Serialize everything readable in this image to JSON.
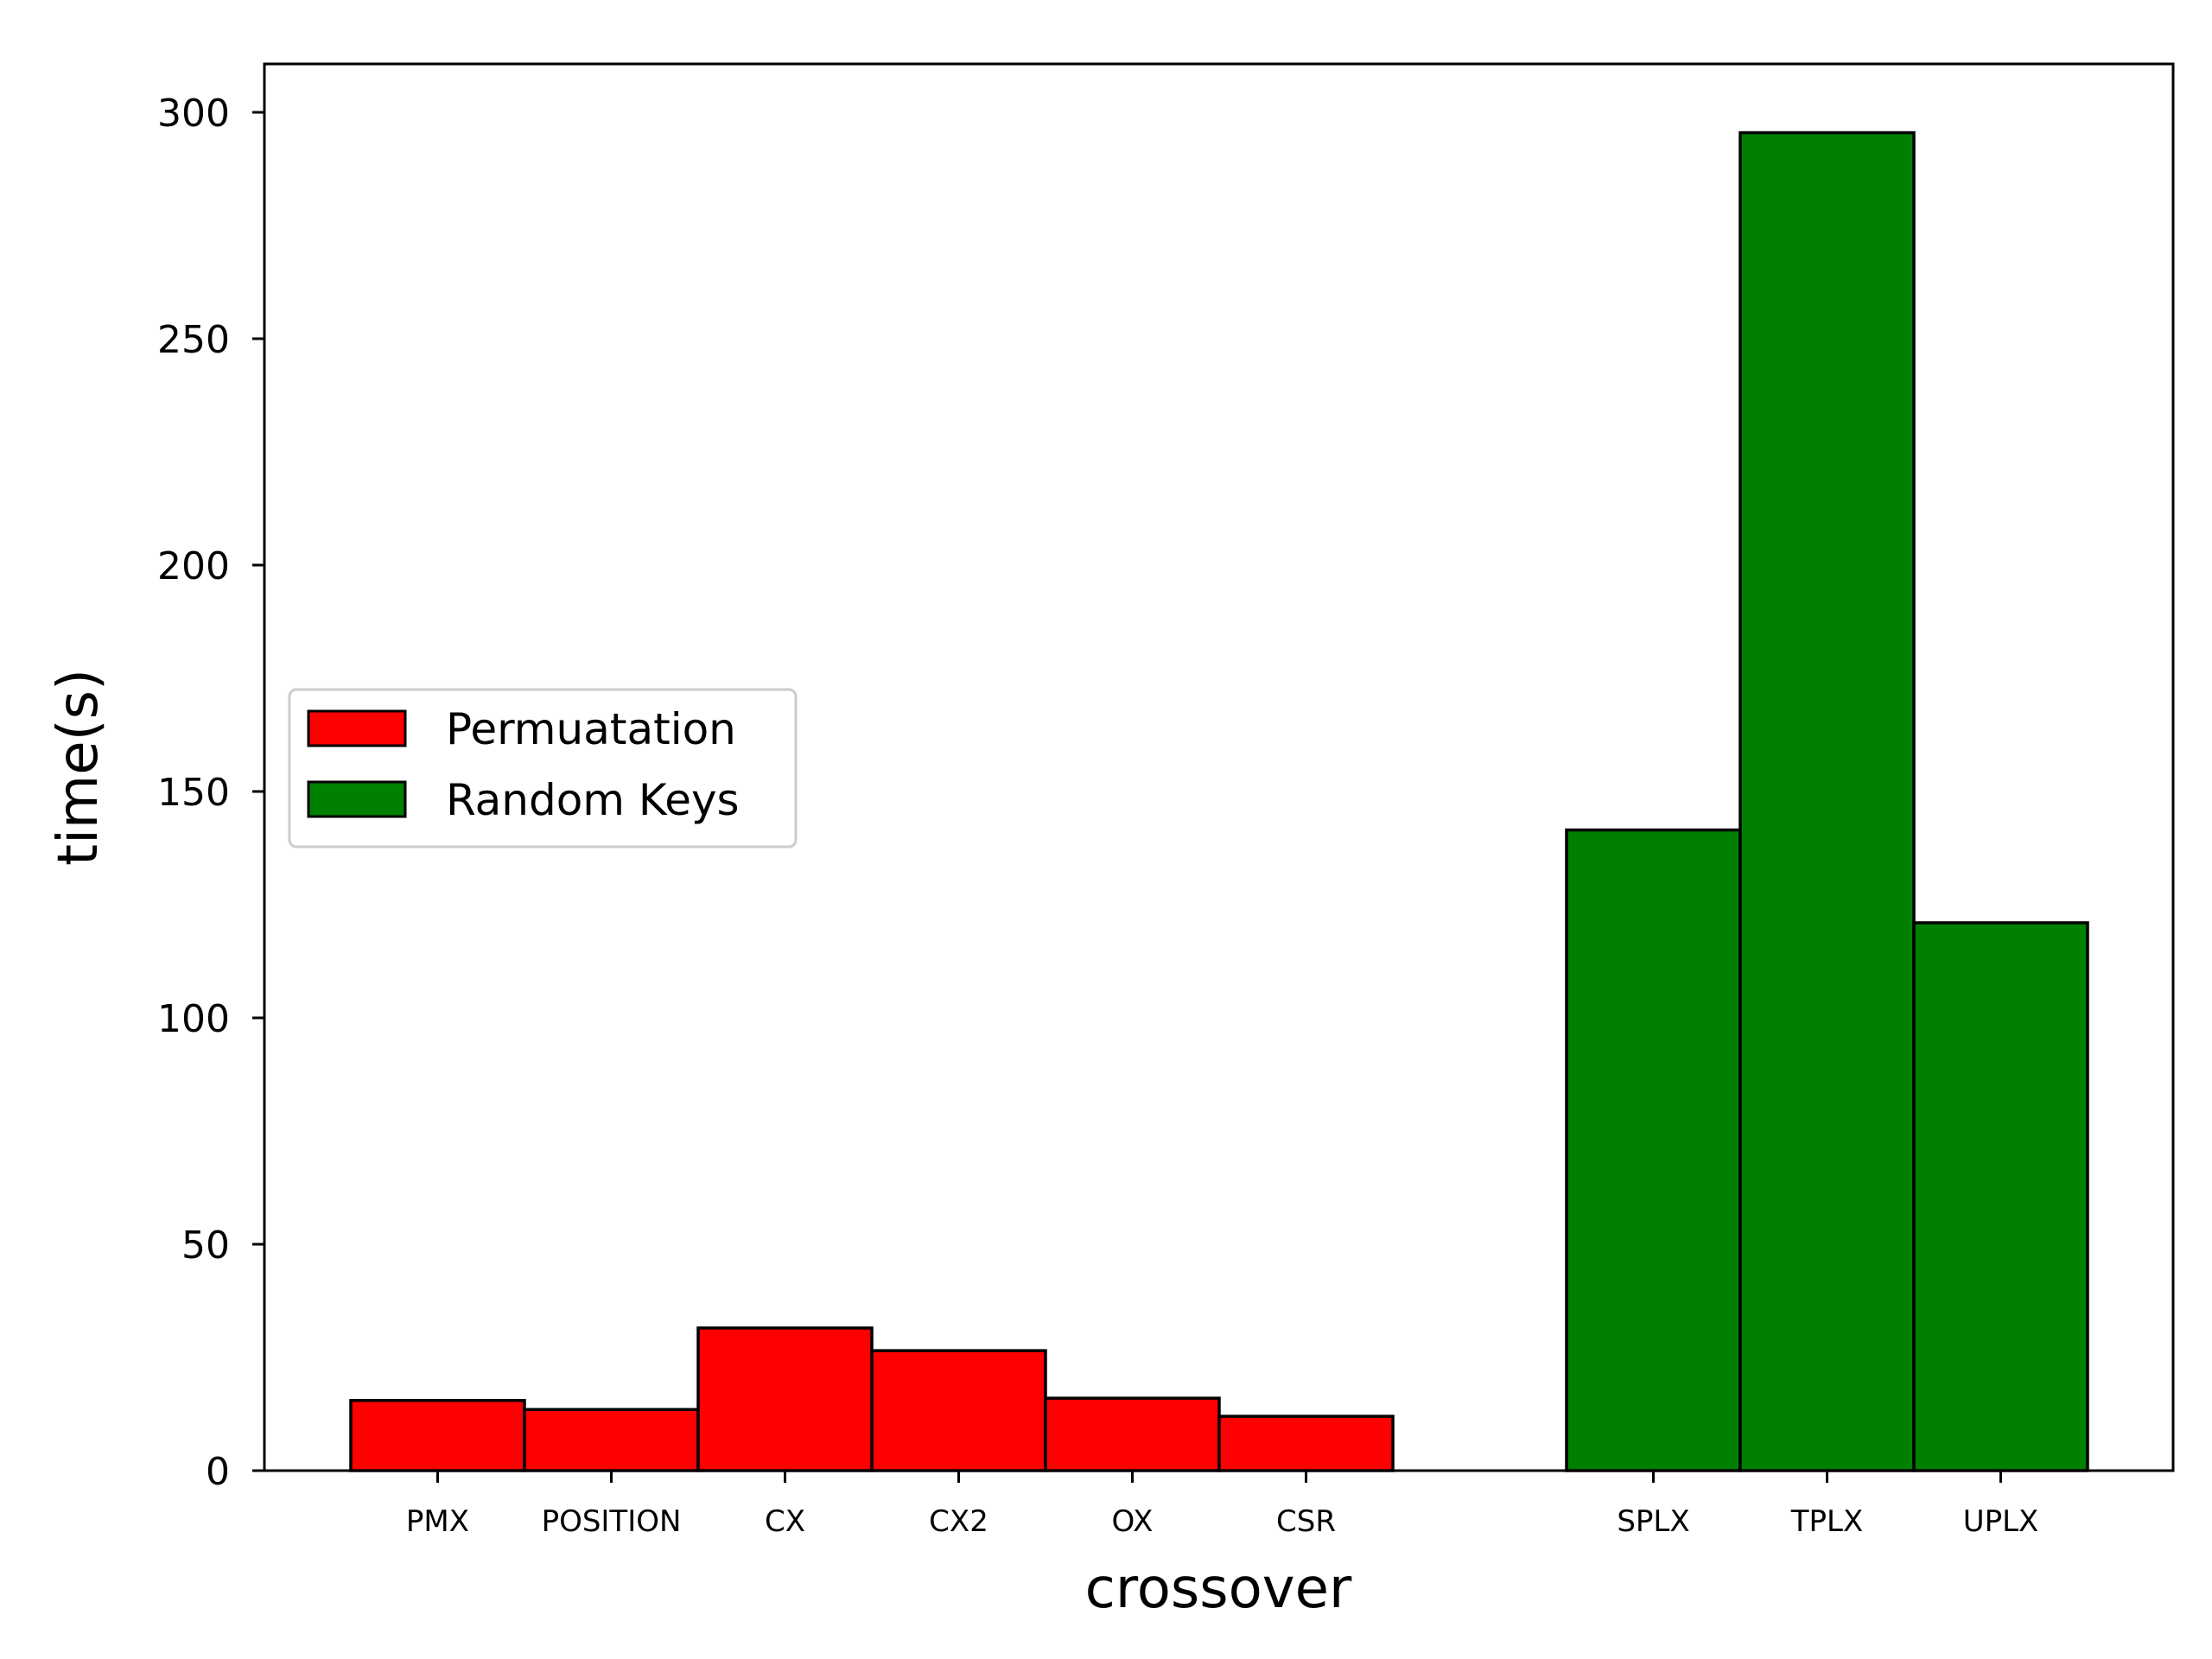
{
  "chart_data": {
    "type": "bar",
    "title": "",
    "xlabel": "crossover",
    "ylabel": "time(s)",
    "ylim": [
      0,
      311
    ],
    "yticks": [
      0,
      50,
      100,
      150,
      200,
      250,
      300
    ],
    "grid": false,
    "legend": {
      "placement": "center-left",
      "entries": [
        {
          "name": "Permuatation",
          "color": "#ff0000"
        },
        {
          "name": "Random Keys",
          "color": "#008000"
        }
      ]
    },
    "series": [
      {
        "name": "Permuatation",
        "color": "#ff0000",
        "categories": [
          "PMX",
          "POSITION",
          "CX",
          "CX2",
          "OX",
          "CSR"
        ],
        "values": [
          15.5,
          13.5,
          31.5,
          26.5,
          16,
          12
        ]
      },
      {
        "name": "Random Keys",
        "color": "#008000",
        "categories": [
          "SPLX",
          "TPLX",
          "UPLX"
        ],
        "values": [
          141.5,
          295.5,
          121
        ]
      }
    ]
  }
}
